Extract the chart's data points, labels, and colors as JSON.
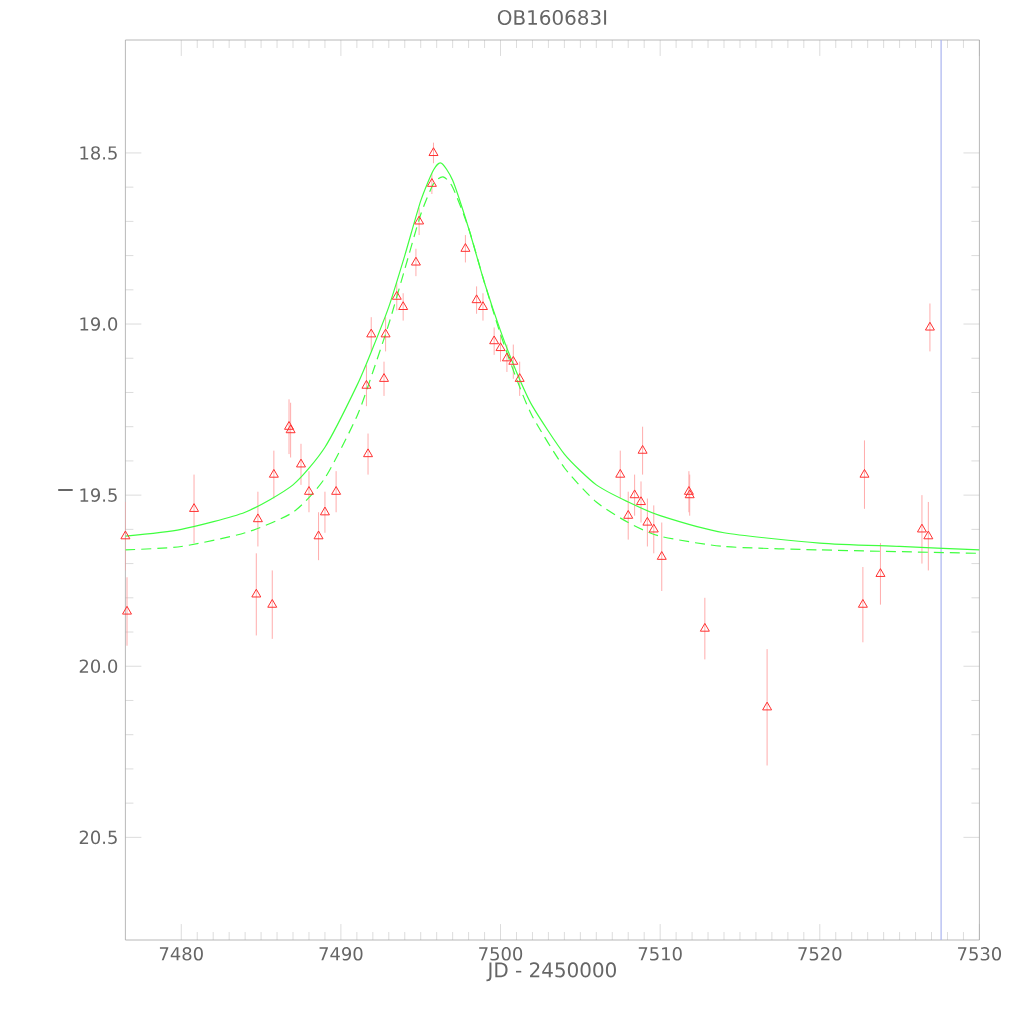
{
  "chart_data": {
    "type": "scatter",
    "title": "OB160683I",
    "xlabel": "JD - 2450000",
    "ylabel": "I",
    "xlim": [
      7476.5,
      7530
    ],
    "ylim": [
      20.8,
      18.17
    ],
    "xticks": [
      7480,
      7490,
      7500,
      7510,
      7520,
      7530
    ],
    "yticks": [
      {
        "value": 18.5,
        "label": "18.5"
      },
      {
        "value": 19.0,
        "label": "19.0"
      },
      {
        "value": 19.5,
        "label": "19.5"
      },
      {
        "value": 20.0,
        "label": "20.0"
      },
      {
        "value": 20.5,
        "label": "20.5"
      }
    ],
    "ref_lines": [
      {
        "axis": "x",
        "value": 7527.6,
        "color": "#aab4f0"
      }
    ],
    "series": [
      {
        "color": "#ff3030",
        "marker": "triangle",
        "x": [
          7476.5,
          7476.6,
          7480.8,
          7484.7,
          7484.8,
          7485.7,
          7485.8,
          7486.75,
          7486.85,
          7487.5,
          7488.0,
          7488.6,
          7489.0,
          7489.7,
          7491.6,
          7491.7,
          7491.9,
          7492.7,
          7492.8,
          7493.5,
          7493.9,
          7494.7,
          7494.9,
          7495.7,
          7495.8,
          7497.8,
          7498.5,
          7498.9,
          7499.6,
          7500.0,
          7500.4,
          7500.8,
          7501.2,
          7507.5,
          7508.0,
          7508.4,
          7508.8,
          7509.2,
          7508.9,
          7509.6,
          7510.1,
          7511.8,
          7511.85,
          7512.8,
          7516.7,
          7522.7,
          7522.8,
          7523.8,
          7526.4,
          7526.8,
          7526.9
        ],
        "values": [
          19.62,
          19.84,
          19.54,
          19.79,
          19.57,
          19.82,
          19.44,
          19.3,
          19.31,
          19.41,
          19.49,
          19.62,
          19.55,
          19.49,
          19.18,
          19.38,
          19.03,
          19.16,
          19.03,
          18.92,
          18.95,
          18.82,
          18.7,
          18.59,
          18.5,
          18.78,
          18.93,
          18.95,
          19.05,
          19.07,
          19.1,
          19.11,
          19.16,
          19.44,
          19.56,
          19.5,
          19.52,
          19.58,
          19.37,
          19.6,
          19.68,
          19.49,
          19.5,
          19.89,
          20.12,
          19.82,
          19.44,
          19.73,
          19.6,
          19.62,
          19.01
        ],
        "errors": [
          0.1,
          0.1,
          0.1,
          0.12,
          0.08,
          0.1,
          0.07,
          0.08,
          0.08,
          0.06,
          0.06,
          0.07,
          0.06,
          0.06,
          0.06,
          0.06,
          0.05,
          0.05,
          0.05,
          0.04,
          0.04,
          0.04,
          0.04,
          0.03,
          0.03,
          0.04,
          0.04,
          0.04,
          0.04,
          0.04,
          0.04,
          0.05,
          0.05,
          0.07,
          0.07,
          0.06,
          0.06,
          0.07,
          0.07,
          0.07,
          0.1,
          0.06,
          0.06,
          0.09,
          0.17,
          0.11,
          0.1,
          0.09,
          0.1,
          0.1,
          0.07
        ]
      },
      {
        "type": "line",
        "color": "#40ff40",
        "line_style": "solid",
        "x": [
          7476.5,
          7480,
          7484,
          7487,
          7489,
          7491,
          7492,
          7493,
          7494,
          7495,
          7495.8,
          7496.3,
          7497,
          7498,
          7499,
          7500,
          7501,
          7502,
          7504,
          7506,
          7508,
          7510,
          7514,
          7520,
          7525,
          7530
        ],
        "values": [
          19.62,
          19.6,
          19.55,
          19.47,
          19.36,
          19.18,
          19.07,
          18.95,
          18.8,
          18.64,
          18.55,
          18.53,
          18.58,
          18.72,
          18.88,
          19.02,
          19.14,
          19.24,
          19.38,
          19.47,
          19.52,
          19.56,
          19.61,
          19.64,
          19.65,
          19.66
        ]
      },
      {
        "type": "line",
        "color": "#40ff40",
        "line_style": "dashed",
        "x": [
          7476.5,
          7480,
          7484,
          7487,
          7489,
          7491,
          7492,
          7493,
          7494,
          7495,
          7495.8,
          7496.4,
          7497,
          7498,
          7499,
          7500,
          7501,
          7502,
          7504,
          7506,
          7508,
          7510,
          7514,
          7520,
          7530
        ],
        "values": [
          19.66,
          19.65,
          19.61,
          19.55,
          19.45,
          19.27,
          19.14,
          19.0,
          18.84,
          18.68,
          18.59,
          18.57,
          18.6,
          18.72,
          18.88,
          19.03,
          19.16,
          19.27,
          19.42,
          19.52,
          19.58,
          19.62,
          19.65,
          19.66,
          19.67
        ]
      }
    ]
  }
}
